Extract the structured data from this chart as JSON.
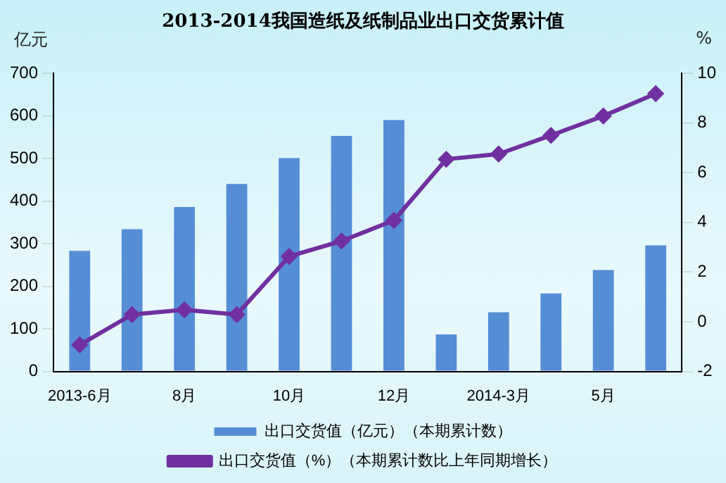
{
  "chart_data": {
    "type": "bar",
    "title": "2013-2014我国造纸及纸制品业出口交货累计值",
    "ylabel": "亿元",
    "y2label": "%",
    "categories": [
      "2013-6月",
      null,
      "8月",
      null,
      "10月",
      null,
      "12月",
      null,
      "2014-3月",
      null,
      "5月",
      null
    ],
    "series": [
      {
        "name": "出口交货值（亿元）（本期累计数）",
        "color": "#558ed5",
        "values": [
          283,
          334,
          386,
          440,
          501,
          553,
          590,
          87,
          139,
          183,
          238,
          296
        ]
      },
      {
        "name": "出口交货值（%）（本期累计数比上年同期增长）",
        "type": "line",
        "axis": "y2",
        "color": "#7030a0",
        "marker": "diamond",
        "values": [
          -0.93,
          0.29,
          0.48,
          0.29,
          2.63,
          3.25,
          4.08,
          6.54,
          6.75,
          7.5,
          8.28,
          9.18
        ]
      }
    ],
    "ylim": [
      0,
      700
    ],
    "yticks": [
      0,
      100,
      200,
      300,
      400,
      500,
      600,
      700
    ],
    "y2lim": [
      -2,
      10
    ],
    "y2ticks": [
      -2,
      0,
      2,
      4,
      6,
      8,
      10
    ],
    "grid": false,
    "legend": "bottom"
  }
}
